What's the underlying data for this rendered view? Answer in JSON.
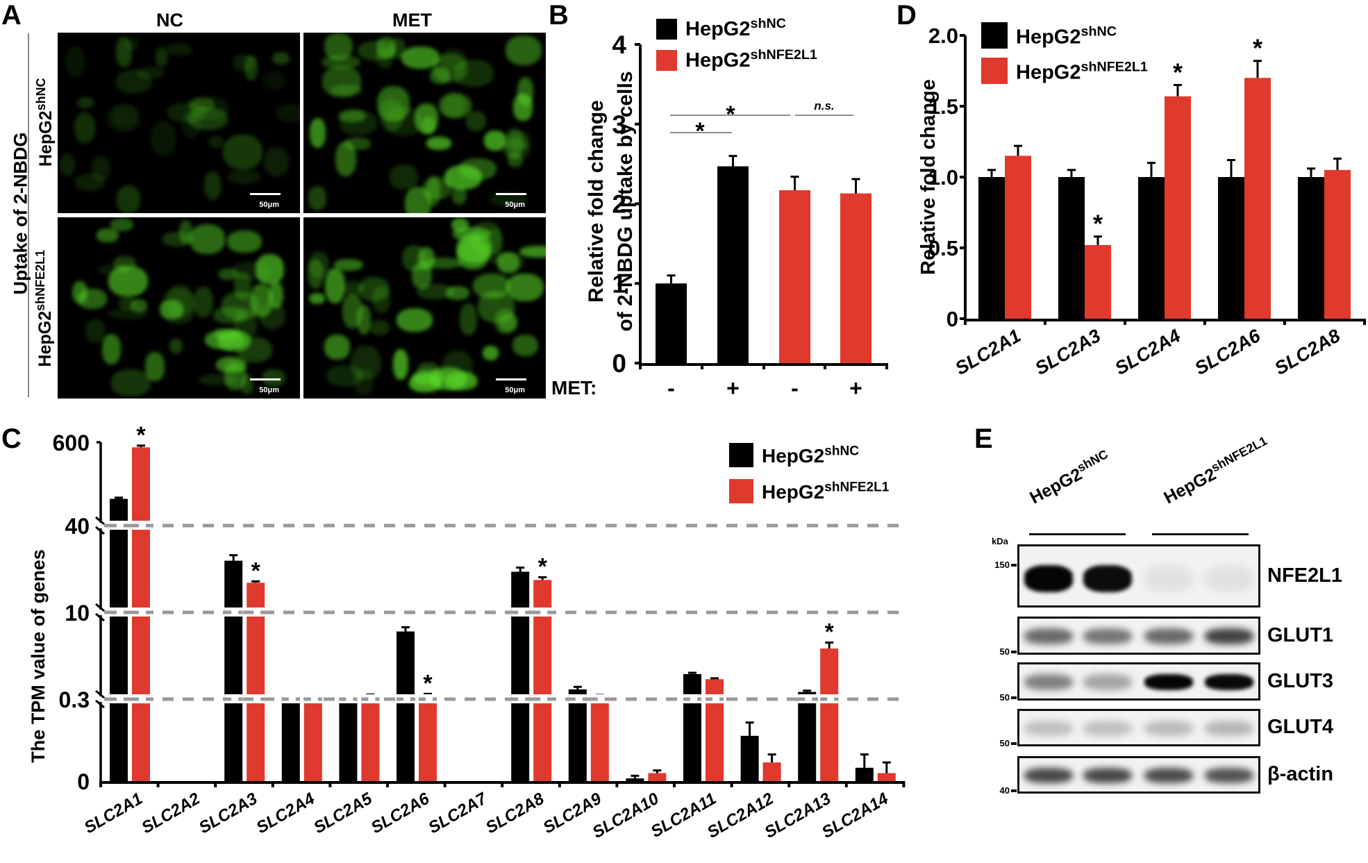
{
  "colors": {
    "nc": "#000000",
    "kd": "#E0392D",
    "dash": "#999999",
    "green": "#4fd12a"
  },
  "panelA": {
    "letter": "A",
    "col_headers": [
      "NC",
      "MET"
    ],
    "side_label": "Uptake of 2-NBDG",
    "row_labels": [
      {
        "base": "HepG2",
        "sup": "shNC"
      },
      {
        "base": "HepG2",
        "sup": "shNFE2L1"
      }
    ],
    "scale_bar": "50μm",
    "images": [
      {
        "row": 0,
        "col": 0,
        "intensity": 0.35
      },
      {
        "row": 0,
        "col": 1,
        "intensity": 0.8
      },
      {
        "row": 1,
        "col": 0,
        "intensity": 0.75
      },
      {
        "row": 1,
        "col": 1,
        "intensity": 0.85
      }
    ]
  },
  "legend": {
    "nc_base": "HepG2",
    "nc_sup": "shNC",
    "kd_base": "HepG2",
    "kd_sup": "shNFE2L1"
  },
  "panelB": {
    "letter": "B",
    "met_label": "MET:",
    "met_signs": [
      "-",
      "+",
      "-",
      "+"
    ],
    "sig_star": "*",
    "ns_label": "n.s."
  },
  "panelC": {
    "letter": "C"
  },
  "panelD": {
    "letter": "D"
  },
  "panelE": {
    "letter": "E",
    "group_labels": [
      {
        "base": "HepG2",
        "sup": "shNC"
      },
      {
        "base": "HepG2",
        "sup": "shNFE2L1"
      }
    ],
    "kda_label": "kDa",
    "blots": [
      {
        "name": "NFE2L1",
        "markers": [
          {
            "label": "150",
            "pos": 0.33
          }
        ],
        "bands": [
          0.98,
          0.95,
          0.04,
          0.04
        ]
      },
      {
        "name": "GLUT1",
        "markers": [
          {
            "label": "50",
            "pos": 0.92
          }
        ],
        "bands": [
          0.55,
          0.5,
          0.55,
          0.72
        ]
      },
      {
        "name": "GLUT3",
        "markers": [
          {
            "label": "50",
            "pos": 0.92
          }
        ],
        "bands": [
          0.45,
          0.3,
          0.98,
          0.96
        ]
      },
      {
        "name": "GLUT4",
        "markers": [
          {
            "label": "50",
            "pos": 0.92
          }
        ],
        "bands": [
          0.18,
          0.18,
          0.2,
          0.22
        ]
      },
      {
        "name": "β-actin",
        "markers": [
          {
            "label": "40",
            "pos": 0.92
          }
        ],
        "bands": [
          0.7,
          0.7,
          0.68,
          0.65
        ]
      }
    ]
  },
  "chart_data": [
    {
      "id": "B",
      "type": "bar",
      "title": "",
      "ylabel": "Relative fold change of 2-NBDG uptake by cells",
      "ylabel_lines": [
        "Relative fold change",
        "of 2-NBDG uptake by cells"
      ],
      "xlabel": "MET",
      "categories": [
        "HepG2shNC MET-",
        "HepG2shNC MET+",
        "HepG2shNFE2L1 MET-",
        "HepG2shNFE2L1 MET+"
      ],
      "values": [
        1.0,
        2.47,
        2.17,
        2.13
      ],
      "errors": [
        0.1,
        0.13,
        0.17,
        0.18
      ],
      "bar_series": [
        "HepG2shNC",
        "HepG2shNC",
        "HepG2shNFE2L1",
        "HepG2shNFE2L1"
      ],
      "ylim": [
        0,
        4
      ],
      "yticks": [
        0,
        1,
        2,
        3,
        4
      ],
      "legend": [
        "HepG2shNC",
        "HepG2shNFE2L1"
      ],
      "annotations": [
        {
          "type": "bracket",
          "from": 0,
          "to": 1,
          "label": "*"
        },
        {
          "type": "bracket",
          "from": 0,
          "to": 2,
          "label": "*"
        },
        {
          "type": "bracket",
          "from": 2,
          "to": 3,
          "label": "n.s."
        }
      ],
      "grid": false
    },
    {
      "id": "C",
      "type": "bar",
      "title": "",
      "ylabel": "The TPM value of genes",
      "xlabel": "",
      "categories": [
        "SLC2A1",
        "SLC2A2",
        "SLC2A3",
        "SLC2A4",
        "SLC2A5",
        "SLC2A6",
        "SLC2A7",
        "SLC2A8",
        "SLC2A9",
        "SLC2A10",
        "SLC2A11",
        "SLC2A12",
        "SLC2A13",
        "SLC2A14"
      ],
      "series": [
        {
          "name": "HepG2shNC",
          "values": [
            210,
            0,
            28,
            0.45,
            0.42,
            8.0,
            0,
            24,
            1.2,
            0.01,
            3.0,
            0.17,
            0.9,
            0.05
          ],
          "errors": [
            8,
            0,
            2,
            0.05,
            0.05,
            0.5,
            0,
            1.5,
            0.3,
            0.01,
            0.15,
            0.05,
            0.15,
            0.05
          ]
        },
        {
          "name": "HepG2shNFE2L1",
          "values": [
            565,
            0,
            20,
            0.38,
            0.55,
            0.6,
            0,
            21,
            0.5,
            0.03,
            2.4,
            0.07,
            6.0,
            0.03
          ],
          "errors": [
            12,
            0,
            0.5,
            0.04,
            0.05,
            0.08,
            0,
            1,
            0.05,
            0.01,
            0.1,
            0.03,
            0.7,
            0.04
          ]
        }
      ],
      "significant": {
        "HepG2shNFE2L1": [
          "SLC2A1",
          "SLC2A3",
          "SLC2A6",
          "SLC2A8",
          "SLC2A13"
        ]
      },
      "yaxis_breaks": [
        0.3,
        10,
        40
      ],
      "yticks": [
        0,
        0.3,
        10,
        40,
        600
      ],
      "ylim": [
        0,
        600
      ],
      "legend": [
        "HepG2shNC",
        "HepG2shNFE2L1"
      ],
      "legend_position": "upper right",
      "grid": "dashed lines at 0.3, 10, 40"
    },
    {
      "id": "D",
      "type": "bar",
      "title": "",
      "ylabel": "Relative fold change",
      "xlabel": "",
      "categories": [
        "SLC2A1",
        "SLC2A3",
        "SLC2A4",
        "SLC2A6",
        "SLC2A8"
      ],
      "series": [
        {
          "name": "HepG2shNC",
          "values": [
            1.0,
            1.0,
            1.0,
            1.0,
            1.0
          ],
          "errors": [
            0.05,
            0.05,
            0.1,
            0.12,
            0.06
          ]
        },
        {
          "name": "HepG2shNFE2L1",
          "values": [
            1.15,
            0.52,
            1.57,
            1.7,
            1.05
          ],
          "errors": [
            0.07,
            0.06,
            0.08,
            0.12,
            0.08
          ]
        }
      ],
      "significant": {
        "HepG2shNFE2L1": [
          "SLC2A3",
          "SLC2A4",
          "SLC2A6"
        ]
      },
      "ylim": [
        0,
        2.0
      ],
      "yticks": [
        0,
        0.5,
        1.0,
        1.5,
        2.0
      ],
      "ytick_labels": [
        "0",
        "0.5",
        "1.0",
        "1.5",
        "2.0"
      ],
      "legend": [
        "HepG2shNC",
        "HepG2shNFE2L1"
      ],
      "legend_position": "upper left",
      "grid": false
    }
  ]
}
